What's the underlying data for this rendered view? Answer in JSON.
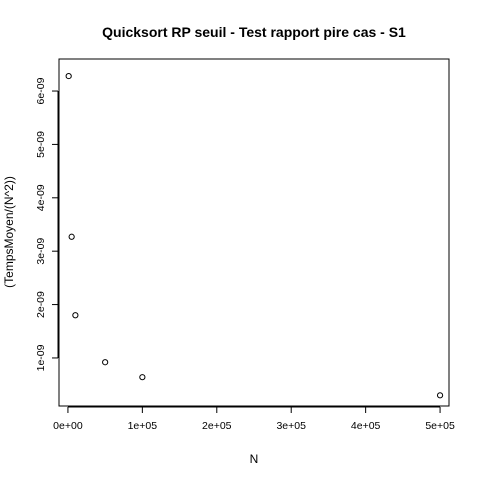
{
  "chart_data": {
    "type": "scatter",
    "title": "Quicksort RP seuil - Test rapport pire cas - S1",
    "xlabel": "N",
    "ylabel": "(TempsMoyen/(N^2))",
    "xlim": [
      -12000,
      512000
    ],
    "ylim": [
      1e-10,
      6.6e-09
    ],
    "x_ticks": [
      0,
      100000,
      200000,
      300000,
      400000,
      500000
    ],
    "x_tick_labels": [
      "0e+00",
      "1e+05",
      "2e+05",
      "3e+05",
      "4e+05",
      "5e+05"
    ],
    "y_ticks": [
      1e-09,
      2e-09,
      3e-09,
      4e-09,
      5e-09,
      6e-09
    ],
    "y_tick_labels": [
      "1e-09",
      "2e-09",
      "3e-09",
      "4e-09",
      "5e-09",
      "6e-09"
    ],
    "grid": false,
    "legend": "none",
    "x": [
      1000,
      5000,
      10000,
      50000,
      100000,
      500000
    ],
    "y": [
      6.28e-09,
      3.27e-09,
      1.8e-09,
      9.2e-10,
      6.4e-10,
      3e-10
    ]
  }
}
